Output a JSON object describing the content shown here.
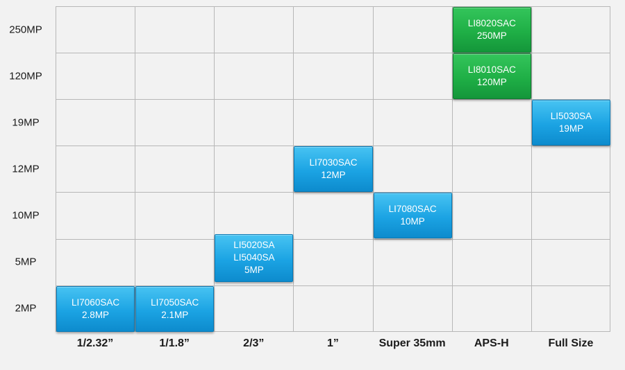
{
  "y_axis_labels": [
    "250MP",
    "120MP",
    "19MP",
    "12MP",
    "10MP",
    "5MP",
    "2MP"
  ],
  "x_axis_labels": [
    "1/2.32”",
    "1/1.8”",
    "2/3”",
    "1”",
    "Super 35mm",
    "APS-H",
    "Full Size"
  ],
  "products": [
    {
      "lines": [
        "LI7060SAC",
        "2.8MP"
      ],
      "sensor": "1/2.32”",
      "resolution": "2MP",
      "color": "blue"
    },
    {
      "lines": [
        "LI7050SAC",
        "2.1MP"
      ],
      "sensor": "1/1.8”",
      "resolution": "2MP",
      "color": "blue"
    },
    {
      "lines": [
        "LI5020SA",
        "LI5040SA",
        "5MP"
      ],
      "sensor": "2/3”",
      "resolution": "5MP",
      "color": "blue"
    },
    {
      "lines": [
        "LI7030SAC",
        "12MP"
      ],
      "sensor": "1”",
      "resolution": "12MP",
      "color": "blue"
    },
    {
      "lines": [
        "LI7080SAC",
        "10MP"
      ],
      "sensor": "Super 35mm",
      "resolution": "10MP",
      "color": "blue"
    },
    {
      "lines": [
        "LI8020SAC",
        "250MP"
      ],
      "sensor": "APS-H",
      "resolution": "250MP",
      "color": "green"
    },
    {
      "lines": [
        "LI8010SAC",
        "120MP"
      ],
      "sensor": "APS-H",
      "resolution": "120MP",
      "color": "green"
    },
    {
      "lines": [
        "LI5030SA",
        "19MP"
      ],
      "sensor": "Full Size",
      "resolution": "19MP",
      "color": "blue"
    }
  ]
}
